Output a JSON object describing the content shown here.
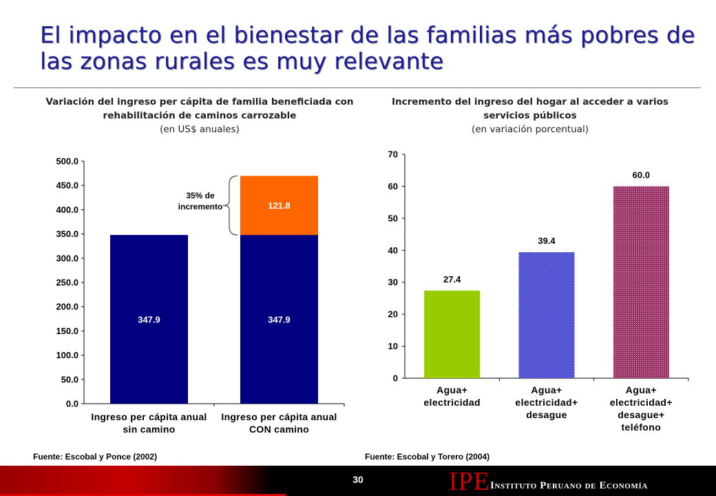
{
  "slide": {
    "title": "El impacto en el bienestar de las familias más pobres de las zonas rurales es muy relevante",
    "page_number": "30",
    "logo": {
      "mark": "IPE",
      "name": "Instituto Peruano de Economía"
    }
  },
  "left_panel": {
    "title": "Variación del ingreso per cápita de familia beneficiada con rehabilitación de caminos carrozable",
    "unit": "(en US$ anuales)",
    "source": "Fuente: Escobal y Ponce (2002)",
    "annotation": "35% de incremento"
  },
  "right_panel": {
    "title": "Incremento del ingreso del hogar al acceder a varios servicios públicos",
    "unit": "(en variación porcentual)",
    "source": "Fuente: Escobal y Torero (2004)"
  },
  "chart_data": [
    {
      "type": "bar",
      "stacked": true,
      "categories": [
        "Ingreso per cápita anual sin camino",
        "Ingreso per cápita anual CON camino"
      ],
      "category_lines": [
        [
          "Ingreso per cápita anual",
          "sin camino"
        ],
        [
          "Ingreso per cápita anual",
          "CON camino"
        ]
      ],
      "series": [
        {
          "values": [
            347.9,
            347.9
          ],
          "color": "#000080",
          "labels": [
            "347.9",
            "347.9"
          ]
        },
        {
          "values": [
            0,
            121.8
          ],
          "color": "#ff6600",
          "labels": [
            "",
            "121.8"
          ]
        }
      ],
      "ylim": [
        0,
        500
      ],
      "yticks": [
        "0.0",
        "50.0",
        "100.0",
        "150.0",
        "200.0",
        "250.0",
        "300.0",
        "350.0",
        "400.0",
        "450.0",
        "500.0"
      ],
      "grid": false,
      "legend": false
    },
    {
      "type": "bar",
      "categories": [
        "Agua+ electricidad",
        "Agua+ electricidad+ desague",
        "Agua+ electricidad+ desague+ teléfono"
      ],
      "category_lines": [
        [
          "Agua+",
          "electricidad"
        ],
        [
          "Agua+",
          "electricidad+",
          "desague"
        ],
        [
          "Agua+",
          "electricidad+",
          "desague+",
          "teléfono"
        ]
      ],
      "values": [
        27.4,
        39.4,
        60.0
      ],
      "labels": [
        "27.4",
        "39.4",
        "60.0"
      ],
      "colors": [
        "#99cc00",
        "#3333cc",
        "#993366"
      ],
      "patterns": [
        "solid",
        "hatch",
        "dots"
      ],
      "ylim": [
        0,
        70
      ],
      "yticks": [
        "0",
        "10",
        "20",
        "30",
        "40",
        "50",
        "60",
        "70"
      ],
      "grid": false,
      "legend": false
    }
  ]
}
